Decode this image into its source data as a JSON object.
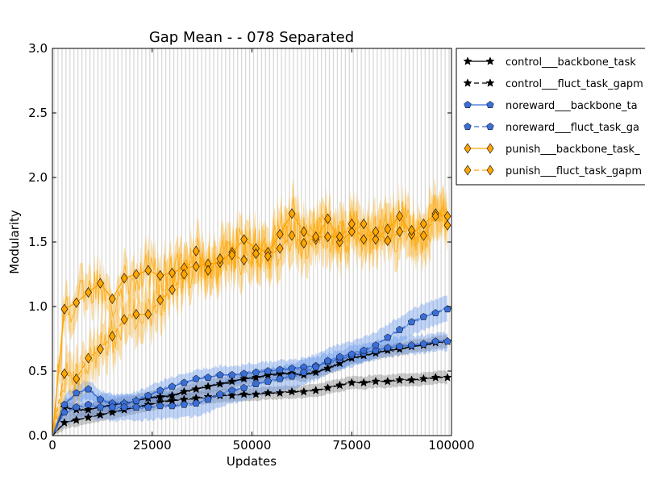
{
  "chart_data": {
    "type": "line",
    "title": "Gap Mean -  - 078 Separated",
    "xlabel": "Updates",
    "ylabel": "Modularity",
    "xlim": [
      0,
      100000
    ],
    "ylim": [
      0.0,
      3.0
    ],
    "xticks": [
      "0",
      "25000",
      "50000",
      "75000",
      "100000"
    ],
    "yticks": [
      "0.0",
      "0.5",
      "1.0",
      "1.5",
      "2.0",
      "2.5",
      "3.0"
    ],
    "grid": false,
    "legend_position": "outside-right",
    "vertical_stripes": true,
    "x": [
      0,
      3000,
      6000,
      9000,
      12000,
      15000,
      18000,
      21000,
      24000,
      27000,
      30000,
      33000,
      36000,
      39000,
      42000,
      45000,
      48000,
      51000,
      54000,
      57000,
      60000,
      63000,
      66000,
      69000,
      72000,
      75000,
      78000,
      81000,
      84000,
      87000,
      90000,
      93000,
      96000,
      99000
    ],
    "series": [
      {
        "name": "control___backbone_task",
        "color": "#000000",
        "band_color": "#808080",
        "marker": "star",
        "dash": false,
        "values": [
          0.0,
          0.22,
          0.2,
          0.2,
          0.22,
          0.24,
          0.25,
          0.27,
          0.29,
          0.3,
          0.31,
          0.34,
          0.36,
          0.38,
          0.4,
          0.42,
          0.44,
          0.45,
          0.47,
          0.48,
          0.48,
          0.47,
          0.49,
          0.52,
          0.56,
          0.6,
          0.62,
          0.64,
          0.66,
          0.67,
          0.69,
          0.7,
          0.72,
          0.73
        ]
      },
      {
        "name": "control___fluct_task_gapm",
        "color": "#000000",
        "band_color": "#808080",
        "marker": "star",
        "dash": true,
        "values": [
          0.0,
          0.1,
          0.12,
          0.14,
          0.16,
          0.18,
          0.2,
          0.22,
          0.24,
          0.26,
          0.27,
          0.28,
          0.29,
          0.3,
          0.31,
          0.31,
          0.32,
          0.32,
          0.33,
          0.33,
          0.34,
          0.34,
          0.35,
          0.37,
          0.39,
          0.41,
          0.41,
          0.42,
          0.42,
          0.43,
          0.43,
          0.44,
          0.45,
          0.45
        ]
      },
      {
        "name": "noreward___backbone_ta",
        "color": "#3a6fd8",
        "band_color": "#6495ed",
        "marker": "pentagon",
        "dash": false,
        "values": [
          0.0,
          0.24,
          0.33,
          0.36,
          0.28,
          0.25,
          0.25,
          0.27,
          0.31,
          0.35,
          0.38,
          0.41,
          0.44,
          0.45,
          0.47,
          0.47,
          0.48,
          0.49,
          0.5,
          0.51,
          0.52,
          0.53,
          0.54,
          0.57,
          0.59,
          0.62,
          0.64,
          0.66,
          0.68,
          0.69,
          0.7,
          0.71,
          0.73,
          0.73
        ]
      },
      {
        "name": "noreward___fluct_task_ga",
        "color": "#3a6fd8",
        "band_color": "#6495ed",
        "marker": "pentagon",
        "dash": true,
        "values": [
          0.0,
          0.18,
          0.22,
          0.24,
          0.22,
          0.22,
          0.22,
          0.22,
          0.22,
          0.23,
          0.23,
          0.24,
          0.25,
          0.28,
          0.32,
          0.35,
          0.37,
          0.4,
          0.42,
          0.44,
          0.46,
          0.49,
          0.53,
          0.58,
          0.61,
          0.63,
          0.66,
          0.7,
          0.76,
          0.82,
          0.88,
          0.92,
          0.95,
          0.98
        ]
      },
      {
        "name": "punish___backbone_task_",
        "color": "#ffa500",
        "band_color": "#ffa500",
        "marker": "diamond",
        "dash": false,
        "values": [
          0.0,
          0.98,
          1.03,
          1.11,
          1.18,
          1.06,
          1.22,
          1.25,
          1.28,
          1.24,
          1.26,
          1.3,
          1.31,
          1.33,
          1.34,
          1.42,
          1.52,
          1.45,
          1.42,
          1.56,
          1.72,
          1.58,
          1.52,
          1.68,
          1.5,
          1.58,
          1.64,
          1.52,
          1.6,
          1.7,
          1.56,
          1.64,
          1.72,
          1.7
        ]
      },
      {
        "name": "punish___fluct_task_gapm",
        "color": "#ffa500",
        "band_color": "#ffa500",
        "marker": "diamond",
        "dash": true,
        "values": [
          0.0,
          0.48,
          0.44,
          0.6,
          0.67,
          0.77,
          0.9,
          0.94,
          0.94,
          1.05,
          1.13,
          1.25,
          1.43,
          1.28,
          1.37,
          1.4,
          1.36,
          1.41,
          1.39,
          1.45,
          1.55,
          1.49,
          1.54,
          1.54,
          1.54,
          1.64,
          1.52,
          1.58,
          1.51,
          1.58,
          1.59,
          1.55,
          1.7,
          1.63
        ]
      }
    ]
  }
}
